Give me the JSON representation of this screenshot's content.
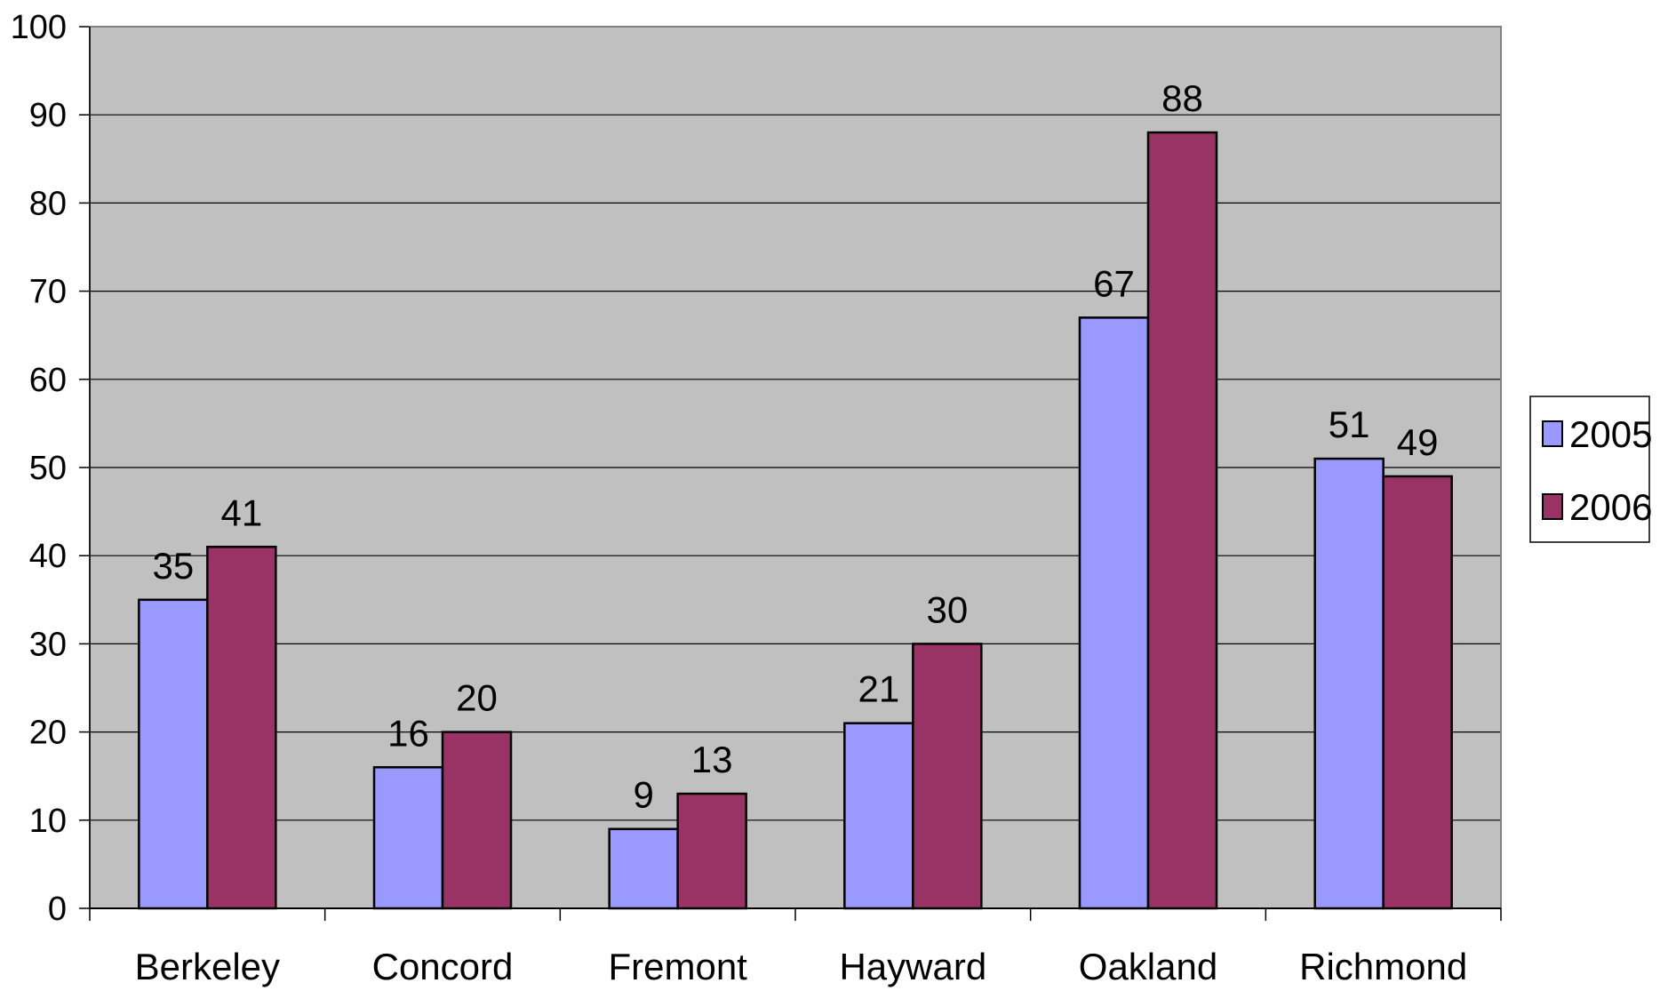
{
  "chart_data": {
    "type": "bar",
    "categories": [
      "Berkeley",
      "Concord",
      "Fremont",
      "Hayward",
      "Oakland",
      "Richmond"
    ],
    "series": [
      {
        "name": "2005",
        "values": [
          35,
          16,
          9,
          21,
          67,
          51
        ],
        "color": "#9999FF"
      },
      {
        "name": "2006",
        "values": [
          41,
          20,
          13,
          30,
          88,
          49
        ],
        "color": "#993366"
      }
    ],
    "ylim": [
      0,
      100
    ],
    "yticks": [
      0,
      10,
      20,
      30,
      40,
      50,
      60,
      70,
      80,
      90,
      100
    ],
    "grid": true,
    "legend_position": "right",
    "plot_background": "#C0C0C0",
    "title": "",
    "xlabel": "",
    "ylabel": ""
  }
}
